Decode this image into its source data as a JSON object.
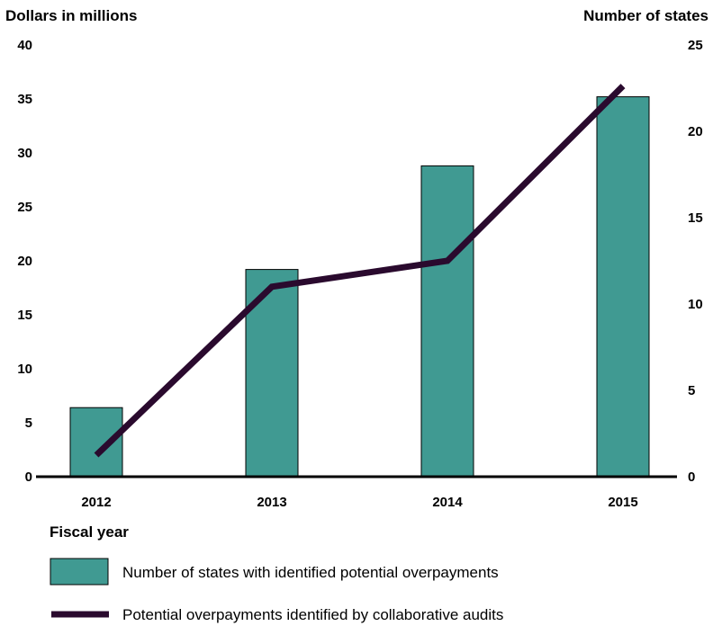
{
  "chart_data": {
    "type": "bar+line",
    "categories": [
      "2012",
      "2013",
      "2014",
      "2015"
    ],
    "xlabel": "Fiscal year",
    "y_left": {
      "label": "Dollars in millions",
      "range": [
        0,
        40
      ],
      "ticks": [
        0,
        5,
        10,
        15,
        20,
        25,
        30,
        35,
        40
      ]
    },
    "y_right": {
      "label": "Number of states",
      "range": [
        0,
        25
      ],
      "ticks": [
        0,
        5,
        10,
        15,
        20,
        25
      ]
    },
    "series": [
      {
        "name": "Number of states with identified potential overpayments",
        "type": "bar",
        "axis": "right",
        "color": "#409a92",
        "values": [
          4,
          12,
          18,
          22
        ]
      },
      {
        "name": "Potential overpayments identified by collaborative audits",
        "type": "line",
        "axis": "left",
        "color": "#2a0a2e",
        "values": [
          2.0,
          17.6,
          20.0,
          36.2
        ]
      }
    ],
    "legend_position": "bottom-left",
    "grid": false
  }
}
